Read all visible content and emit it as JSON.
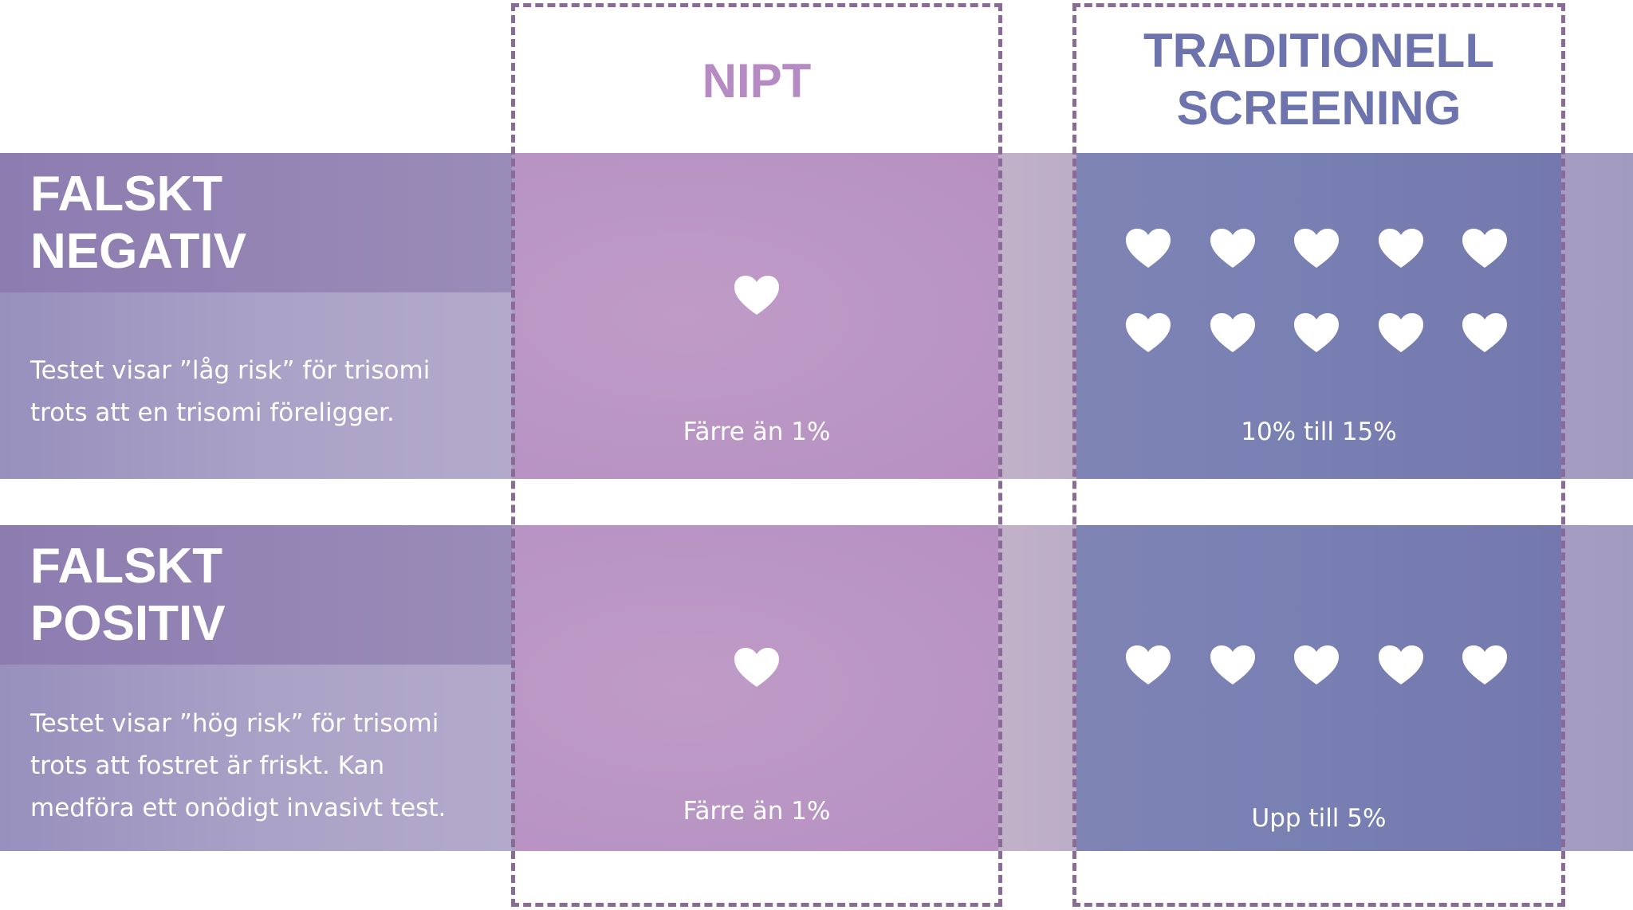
{
  "columns": {
    "nipt": {
      "title": "NIPT",
      "color": "#b68bc4"
    },
    "traditional": {
      "title_line1": "TRADITIONELL",
      "title_line2": "SCREENING",
      "color": "#6d74ad"
    }
  },
  "rows": [
    {
      "title_line1": "FALSKT",
      "title_line2": "NEGATIV",
      "desc_lines": [
        "Testet visar ”låg risk” för trisomi",
        "trots att en trisomi föreligger."
      ],
      "nipt": {
        "label": "Färre än 1%",
        "hearts": 1
      },
      "traditional": {
        "label": "10% till 15%",
        "hearts": 10
      }
    },
    {
      "title_line1": "FALSKT",
      "title_line2": "POSITIV",
      "desc_lines": [
        "Testet visar ”hög risk” för trisomi",
        "trots att fostret är friskt. Kan",
        "medföra ett onödigt invasivt test."
      ],
      "nipt": {
        "label": "Färre än 1%",
        "hearts": 1
      },
      "traditional": {
        "label": "Upp till 5%",
        "hearts": 5
      }
    }
  ],
  "icons": {
    "heart": "heart-icon"
  },
  "colors": {
    "frame": "#8a6a96",
    "heart": "#ffffff"
  }
}
